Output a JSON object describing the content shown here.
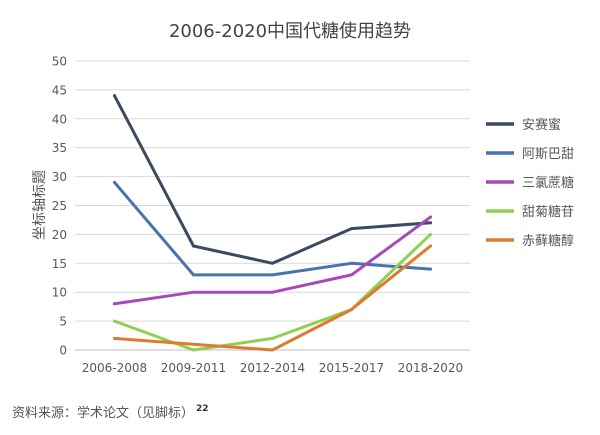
{
  "chart_data": {
    "type": "line",
    "title": "2006-2020中国代糖使用趋势",
    "xlabel": "",
    "ylabel": "坐标轴标题",
    "categories": [
      "2006-2008",
      "2009-2011",
      "2012-2014",
      "2015-2017",
      "2018-2020"
    ],
    "ylim": [
      0,
      50
    ],
    "yticks": [
      0,
      5,
      10,
      15,
      20,
      25,
      30,
      35,
      40,
      45,
      50
    ],
    "grid": true,
    "legend_position": "right",
    "series": [
      {
        "name": "安赛蜜",
        "color": "#3b4a5e",
        "values": [
          44,
          18,
          15,
          21,
          22
        ]
      },
      {
        "name": "阿斯巴甜",
        "color": "#4a72b0",
        "values": [
          29,
          13,
          13,
          15,
          14
        ]
      },
      {
        "name": "三氯蔗糖",
        "color": "#a64ab8",
        "values": [
          8,
          10,
          10,
          13,
          23
        ]
      },
      {
        "name": "甜菊糖苷",
        "color": "#8fd04f",
        "values": [
          5,
          0,
          2,
          7,
          20
        ]
      },
      {
        "name": "赤藓糖醇",
        "color": "#e07a30",
        "values": [
          2,
          1,
          0,
          7,
          18
        ]
      }
    ]
  },
  "source": {
    "text": "资料来源：学术论文（见脚标）",
    "footnote": "22"
  }
}
